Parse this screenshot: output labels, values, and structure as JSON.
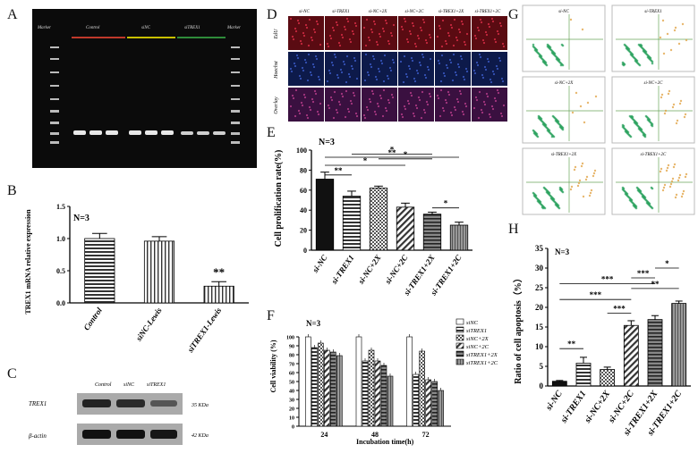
{
  "panels": {
    "A": {
      "letter": "A",
      "lanes": {
        "marker_left": "Marker",
        "control": "Control",
        "sinc": "siNC",
        "sitrex1": "siTREX1",
        "marker_right": "Marker"
      },
      "lane_colors": {
        "control": "#c0392b",
        "sinc": "#c8c000",
        "sitrex1": "#2e8b3a"
      }
    },
    "B": {
      "letter": "B",
      "n_label": "N=3",
      "significance": "**"
    },
    "C": {
      "letter": "C",
      "columns": [
        "Control",
        "siNC",
        "siTREX1"
      ],
      "rows": [
        {
          "name": "TREX1",
          "size": "35 KDa"
        },
        {
          "name": "β-actin",
          "size": "42 KDa"
        }
      ]
    },
    "D": {
      "letter": "D",
      "columns": [
        "si-NC",
        "si-TREX1",
        "si-NC+2X",
        "si-NC+2C",
        "si-TREX1+2X",
        "si-TREX1+2C"
      ],
      "rows": [
        "EdU",
        "Hoechst",
        "Overlay"
      ]
    },
    "E": {
      "letter": "E",
      "n_label": "N=3",
      "sig_marks": [
        "**",
        "*",
        "*",
        "*",
        "**",
        "*"
      ]
    },
    "F": {
      "letter": "F",
      "n_label": "N=3"
    },
    "G": {
      "letter": "G",
      "plots": [
        "si-NC",
        "si-TREX1",
        "si-NC+2X",
        "si-NC+2C",
        "si-TREX1+2X",
        "si-TREX1+2C"
      ]
    },
    "H": {
      "letter": "H",
      "n_label": "N=3",
      "sig_marks": [
        "**",
        "***",
        "*",
        "***",
        "**",
        "***",
        "***"
      ]
    }
  },
  "chart_data": [
    {
      "id": "B",
      "type": "bar",
      "title": "",
      "ylabel": "TREX1 mRNA relative expression",
      "xlabel": "",
      "categories": [
        "Control",
        "siNC-Lewis",
        "siTREX1-Lewis"
      ],
      "values": [
        1.0,
        0.96,
        0.26
      ],
      "errors": [
        0.08,
        0.07,
        0.07
      ],
      "ylim": [
        0,
        1.5
      ],
      "yticks": [
        0.0,
        0.5,
        1.0,
        1.5
      ]
    },
    {
      "id": "E",
      "type": "bar",
      "ylabel": "Cell prolification rate(%)",
      "xlabel": "",
      "categories": [
        "si-NC",
        "si-TREX1",
        "si-NC+2X",
        "si-NC+2C",
        "si-TREX1+2X",
        "si-TREX1+2C"
      ],
      "values": [
        71,
        54,
        62,
        43,
        36,
        25
      ],
      "errors": [
        7,
        5,
        2,
        4,
        2,
        3
      ],
      "ylim": [
        0,
        100
      ],
      "yticks": [
        0,
        20,
        40,
        60,
        80,
        100
      ]
    },
    {
      "id": "F",
      "type": "bar",
      "ylabel": "Cell viability (%)",
      "xlabel": "Incubation time(h)",
      "categories": [
        "24",
        "48",
        "72"
      ],
      "series": [
        {
          "name": "siNC",
          "values": [
            100,
            100,
            100
          ]
        },
        {
          "name": "siTREX1",
          "values": [
            88,
            73,
            58
          ]
        },
        {
          "name": "siNC+2X",
          "values": [
            93,
            85,
            84
          ]
        },
        {
          "name": "siNC+2C",
          "values": [
            85,
            73,
            52
          ]
        },
        {
          "name": "siTREX1+2X",
          "values": [
            83,
            68,
            50
          ]
        },
        {
          "name": "siTREX1+2C",
          "values": [
            79,
            56,
            40
          ]
        }
      ],
      "ylim": [
        0,
        100
      ],
      "yticks": [
        0,
        10,
        20,
        30,
        40,
        50,
        60,
        70,
        80,
        90,
        100
      ]
    },
    {
      "id": "H",
      "type": "bar",
      "ylabel": "Ratio of cell apoptosis（%）",
      "xlabel": "",
      "categories": [
        "si-NC",
        "si-TREX1",
        "si-NC+2X",
        "si-NC+2C",
        "si-TREX1+2X",
        "si-TREX1+2C"
      ],
      "values": [
        1.2,
        5.8,
        4.2,
        15.4,
        16.9,
        21.0
      ],
      "errors": [
        0.2,
        1.5,
        0.6,
        1.2,
        1.0,
        0.6
      ],
      "ylim": [
        0,
        35
      ],
      "yticks": [
        0,
        5,
        10,
        15,
        20,
        25,
        30,
        35
      ]
    }
  ]
}
